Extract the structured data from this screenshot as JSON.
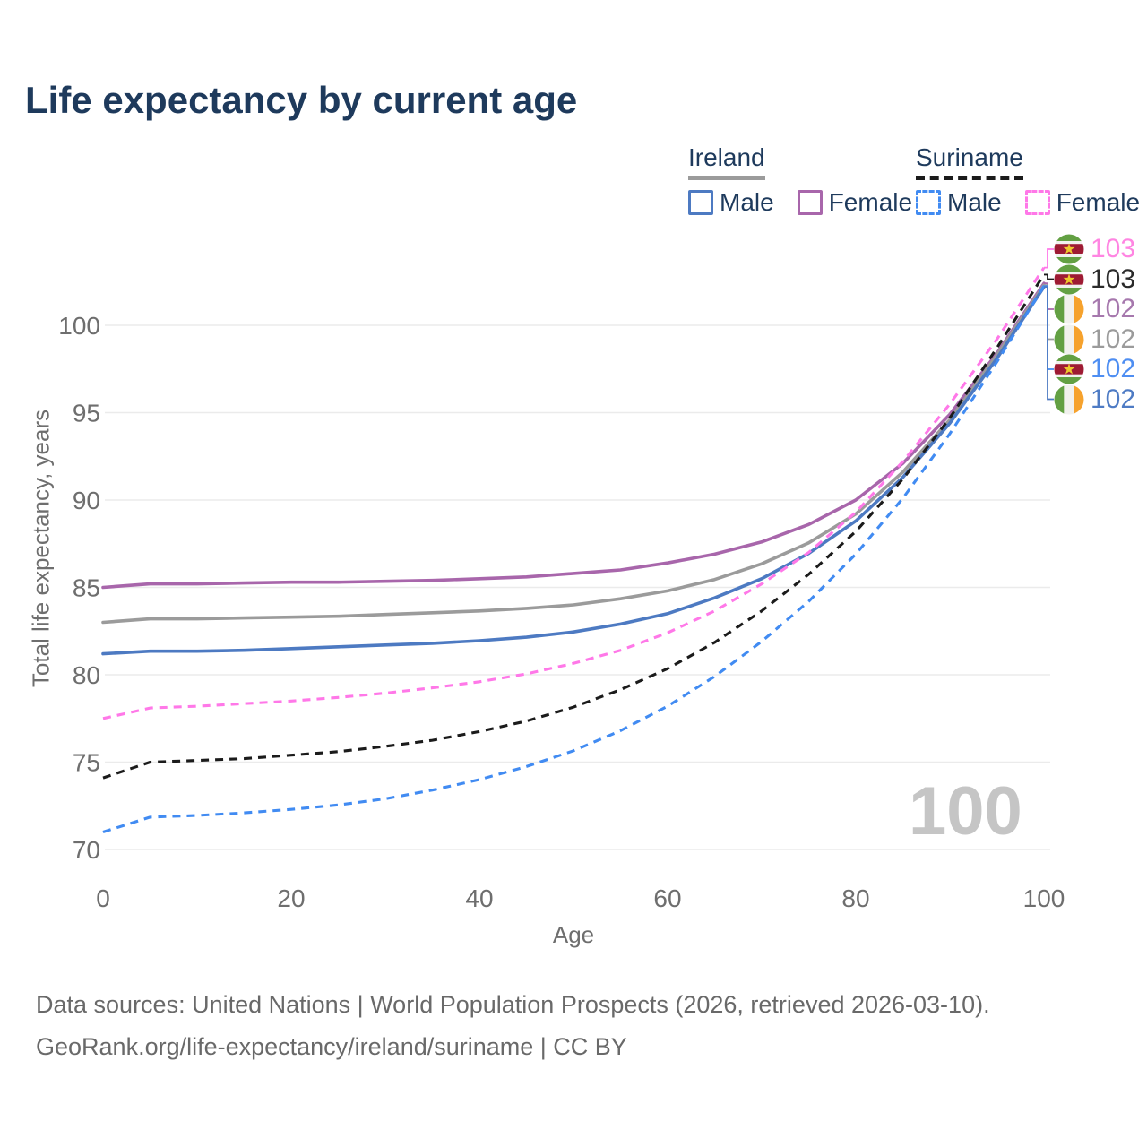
{
  "title": "Life expectancy by current age",
  "watermark": "100",
  "legend": {
    "groups": [
      {
        "name": "Ireland",
        "line_style": "solid",
        "line_color": "#9b9b9b",
        "items": [
          {
            "label": "Male",
            "style": "solid",
            "color": "#4d7ac2"
          },
          {
            "label": "Female",
            "style": "solid",
            "color": "#a866ab"
          }
        ]
      },
      {
        "name": "Suriname",
        "line_style": "dashed",
        "line_color": "#1b1b1b",
        "items": [
          {
            "label": "Male",
            "style": "dashed",
            "color": "#418bf2"
          },
          {
            "label": "Female",
            "style": "dashed",
            "color": "#ff78e8"
          }
        ]
      }
    ]
  },
  "chart_data": {
    "type": "line",
    "title": "Life expectancy by current age",
    "xlabel": "Age",
    "ylabel": "Total life expectancy, years",
    "x_ticks": [
      0,
      20,
      40,
      60,
      80,
      100
    ],
    "y_ticks": [
      70,
      75,
      80,
      85,
      90,
      95,
      100
    ],
    "xlim": [
      0,
      100
    ],
    "ylim": [
      69.5,
      104.5
    ],
    "grid": "horizontal",
    "legend_position": "top-right",
    "x": [
      0,
      5,
      10,
      15,
      20,
      25,
      30,
      35,
      40,
      45,
      50,
      55,
      60,
      65,
      70,
      75,
      80,
      85,
      90,
      95,
      100
    ],
    "series": [
      {
        "name": "Ireland Female",
        "country": "Ireland",
        "sex": "Female",
        "style": "solid",
        "color": "#a866ab",
        "values": [
          85.0,
          85.2,
          85.2,
          85.25,
          85.3,
          85.3,
          85.35,
          85.4,
          85.5,
          85.6,
          85.8,
          86.0,
          86.4,
          86.9,
          87.6,
          88.6,
          90.0,
          92.1,
          94.9,
          98.4,
          102.4
        ]
      },
      {
        "name": "Ireland All",
        "country": "Ireland",
        "sex": "Both",
        "style": "solid",
        "color": "#9b9b9b",
        "values": [
          83.0,
          83.2,
          83.2,
          83.25,
          83.3,
          83.35,
          83.45,
          83.55,
          83.65,
          83.8,
          84.0,
          84.35,
          84.8,
          85.45,
          86.35,
          87.55,
          89.2,
          91.6,
          94.6,
          98.3,
          102.3
        ]
      },
      {
        "name": "Ireland Male",
        "country": "Ireland",
        "sex": "Male",
        "style": "solid",
        "color": "#4d7ac2",
        "values": [
          81.2,
          81.35,
          81.35,
          81.4,
          81.5,
          81.6,
          81.7,
          81.8,
          81.95,
          82.15,
          82.45,
          82.9,
          83.5,
          84.4,
          85.5,
          86.95,
          88.8,
          91.3,
          94.4,
          98.1,
          102.2
        ]
      },
      {
        "name": "Suriname Female",
        "country": "Suriname",
        "sex": "Female",
        "style": "dashed",
        "color": "#ff78e8",
        "values": [
          77.5,
          78.1,
          78.2,
          78.35,
          78.5,
          78.7,
          78.95,
          79.25,
          79.6,
          80.05,
          80.65,
          81.4,
          82.4,
          83.65,
          85.2,
          87.0,
          89.3,
          92.2,
          95.5,
          99.2,
          103.3
        ]
      },
      {
        "name": "Suriname All",
        "country": "Suriname",
        "sex": "Both",
        "style": "dashed",
        "color": "#1b1b1b",
        "values": [
          74.1,
          75.0,
          75.1,
          75.2,
          75.4,
          75.6,
          75.9,
          76.25,
          76.75,
          77.35,
          78.15,
          79.15,
          80.35,
          81.85,
          83.65,
          85.75,
          88.2,
          91.2,
          94.7,
          98.7,
          102.9
        ]
      },
      {
        "name": "Suriname Male",
        "country": "Suriname",
        "sex": "Male",
        "style": "dashed",
        "color": "#418bf2",
        "values": [
          71.0,
          71.85,
          71.95,
          72.1,
          72.3,
          72.55,
          72.9,
          73.4,
          74.0,
          74.75,
          75.65,
          76.8,
          78.2,
          79.9,
          81.9,
          84.2,
          86.9,
          90.1,
          93.8,
          97.9,
          102.25
        ]
      }
    ],
    "end_labels": [
      {
        "value": "103",
        "flag": "suriname",
        "series": "Suriname Female",
        "color": "#ff85e2"
      },
      {
        "value": "103",
        "flag": "suriname",
        "series": "Suriname All",
        "color": "#2b2b2b"
      },
      {
        "value": "102",
        "flag": "ireland",
        "series": "Ireland Female",
        "color": "#a678ad"
      },
      {
        "value": "102",
        "flag": "ireland",
        "series": "Ireland All",
        "color": "#9b9b9b"
      },
      {
        "value": "102",
        "flag": "suriname",
        "series": "Suriname Male",
        "color": "#4e8ef2"
      },
      {
        "value": "102",
        "flag": "ireland",
        "series": "Ireland Male",
        "color": "#4e7bc4"
      }
    ]
  },
  "footer": {
    "line1": "Data sources: United Nations | World Population Prospects (2026, retrieved 2026-03-10).",
    "line2": "GeoRank.org/life-expectancy/ireland/suriname | CC BY"
  }
}
